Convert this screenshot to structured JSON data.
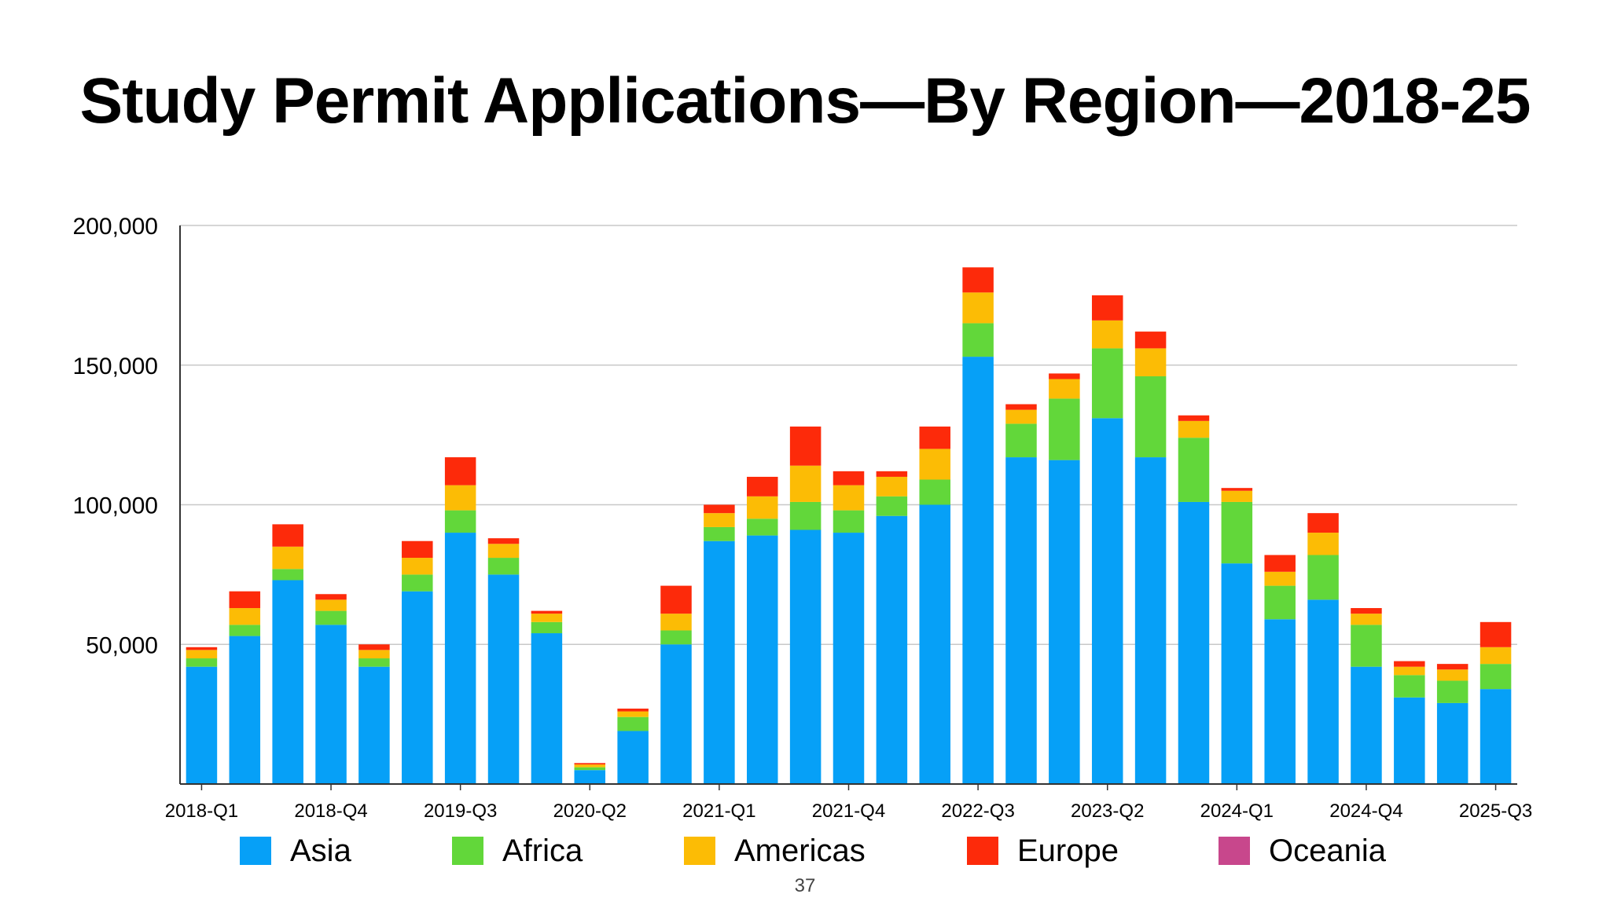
{
  "slide": {
    "title": "Study Permit Applications—By Region—2018-25",
    "page_number": "37"
  },
  "colors": {
    "Asia": "#06a0f7",
    "Africa": "#62d73a",
    "Americas": "#fcbc05",
    "Europe": "#fd2a0a",
    "Oceania": "#c8478c",
    "grid": "#c8c8c8",
    "axis": "#333333"
  },
  "chart_data": {
    "type": "bar",
    "stacked": true,
    "title": "Study Permit Applications—By Region—2018-25",
    "xlabel": "",
    "ylabel": "",
    "ylim": [
      0,
      200000
    ],
    "y_ticks": [
      50000,
      100000,
      150000,
      200000
    ],
    "y_tick_labels": [
      "50,000",
      "100,000",
      "150,000",
      "200,000"
    ],
    "grid": true,
    "legend_position": "bottom",
    "categories": [
      "2018-Q1",
      "2018-Q2",
      "2018-Q3",
      "2018-Q4",
      "2019-Q1",
      "2019-Q2",
      "2019-Q3",
      "2019-Q4",
      "2020-Q1",
      "2020-Q2",
      "2020-Q3",
      "2020-Q4",
      "2021-Q1",
      "2021-Q2",
      "2021-Q3",
      "2021-Q4",
      "2022-Q1",
      "2022-Q2",
      "2022-Q3",
      "2022-Q4",
      "2023-Q1",
      "2023-Q2",
      "2023-Q3",
      "2023-Q4",
      "2024-Q1",
      "2024-Q2",
      "2024-Q3",
      "2024-Q4",
      "2025-Q1",
      "2025-Q2",
      "2025-Q3"
    ],
    "x_tick_labels": [
      "2018-Q1",
      "2018-Q4",
      "2019-Q3",
      "2020-Q2",
      "2021-Q1",
      "2021-Q4",
      "2022-Q3",
      "2023-Q2",
      "2024-Q1",
      "2024-Q4",
      "2025-Q3"
    ],
    "series": [
      {
        "name": "Asia",
        "values": [
          42000,
          53000,
          73000,
          57000,
          42000,
          69000,
          90000,
          75000,
          54000,
          5000,
          19000,
          50000,
          87000,
          89000,
          91000,
          90000,
          96000,
          100000,
          153000,
          117000,
          116000,
          131000,
          117000,
          101000,
          79000,
          59000,
          66000,
          42000,
          31000,
          29000,
          34000
        ]
      },
      {
        "name": "Africa",
        "values": [
          3000,
          4000,
          4000,
          5000,
          3000,
          6000,
          8000,
          6000,
          4000,
          1000,
          5000,
          5000,
          5000,
          6000,
          10000,
          8000,
          7000,
          9000,
          12000,
          12000,
          22000,
          25000,
          29000,
          23000,
          22000,
          12000,
          16000,
          15000,
          8000,
          8000,
          9000
        ]
      },
      {
        "name": "Americas",
        "values": [
          3000,
          6000,
          8000,
          4000,
          3000,
          6000,
          9000,
          5000,
          3000,
          1000,
          2000,
          6000,
          5000,
          8000,
          13000,
          9000,
          7000,
          11000,
          11000,
          5000,
          7000,
          10000,
          10000,
          6000,
          4000,
          5000,
          8000,
          4000,
          3000,
          4000,
          6000
        ]
      },
      {
        "name": "Europe",
        "values": [
          1000,
          6000,
          8000,
          2000,
          2000,
          6000,
          10000,
          2000,
          1000,
          500,
          1000,
          10000,
          3000,
          7000,
          14000,
          5000,
          2000,
          8000,
          9000,
          2000,
          2000,
          9000,
          6000,
          2000,
          1000,
          6000,
          7000,
          2000,
          2000,
          2000,
          9000
        ]
      },
      {
        "name": "Oceania",
        "values": [
          0,
          0,
          0,
          0,
          0,
          0,
          0,
          0,
          0,
          0,
          0,
          0,
          0,
          0,
          0,
          0,
          0,
          0,
          0,
          0,
          0,
          0,
          0,
          0,
          0,
          0,
          0,
          0,
          0,
          0,
          0
        ]
      }
    ]
  }
}
